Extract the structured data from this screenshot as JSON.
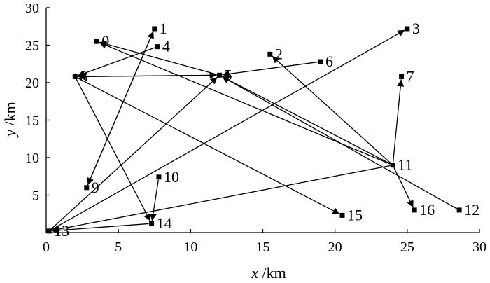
{
  "chart_data": {
    "type": "scatter",
    "xlabel": "x /km",
    "ylabel": "y /km",
    "xlim": [
      0,
      30
    ],
    "ylim": [
      0,
      30
    ],
    "x_ticks": [
      "0",
      "5",
      "10",
      "15",
      "20",
      "25",
      "30"
    ],
    "y_ticks": [
      "5",
      "10",
      "15",
      "20",
      "25",
      "30"
    ],
    "grid": false,
    "points": [
      {
        "label": "0",
        "x": 3.5,
        "y": 25.5
      },
      {
        "label": "1",
        "x": 7.5,
        "y": 27.2
      },
      {
        "label": "2",
        "x": 15.5,
        "y": 23.8
      },
      {
        "label": "3",
        "x": 25.0,
        "y": 27.2
      },
      {
        "label": "4",
        "x": 7.7,
        "y": 24.8
      },
      {
        "label": "5",
        "x": 12.0,
        "y": 21.0
      },
      {
        "label": "6",
        "x": 19.0,
        "y": 22.8
      },
      {
        "label": "7",
        "x": 24.6,
        "y": 20.8
      },
      {
        "label": "8",
        "x": 2.0,
        "y": 20.8
      },
      {
        "label": "9",
        "x": 2.8,
        "y": 6.0
      },
      {
        "label": "10",
        "x": 7.8,
        "y": 7.4
      },
      {
        "label": "11",
        "x": 24.0,
        "y": 9.0
      },
      {
        "label": "12",
        "x": 28.6,
        "y": 3.0
      },
      {
        "label": "13",
        "x": 0.2,
        "y": 0.2
      },
      {
        "label": "14",
        "x": 7.3,
        "y": 1.2
      },
      {
        "label": "15",
        "x": 20.5,
        "y": 2.3
      },
      {
        "label": "16",
        "x": 25.5,
        "y": 3.0
      }
    ],
    "arrows": [
      {
        "from": "8",
        "to": "5"
      },
      {
        "from": "5",
        "to": "8"
      },
      {
        "from": "5",
        "to": "0"
      },
      {
        "from": "11",
        "to": "0"
      },
      {
        "from": "6",
        "to": "5"
      },
      {
        "from": "11",
        "to": "5"
      },
      {
        "from": "11",
        "to": "2"
      },
      {
        "from": "11",
        "to": "7"
      },
      {
        "from": "4",
        "to": "8"
      },
      {
        "from": "8",
        "to": "14"
      },
      {
        "from": "8",
        "to": "15"
      },
      {
        "from": "9",
        "to": "1"
      },
      {
        "from": "1",
        "to": "9"
      },
      {
        "from": "10",
        "to": "14"
      },
      {
        "from": "14",
        "to": "13"
      },
      {
        "from": "13",
        "to": "5"
      },
      {
        "from": "13",
        "to": "3"
      },
      {
        "from": "11",
        "to": "13"
      },
      {
        "from": "12",
        "to": "5"
      },
      {
        "from": "11",
        "to": "16"
      }
    ]
  }
}
